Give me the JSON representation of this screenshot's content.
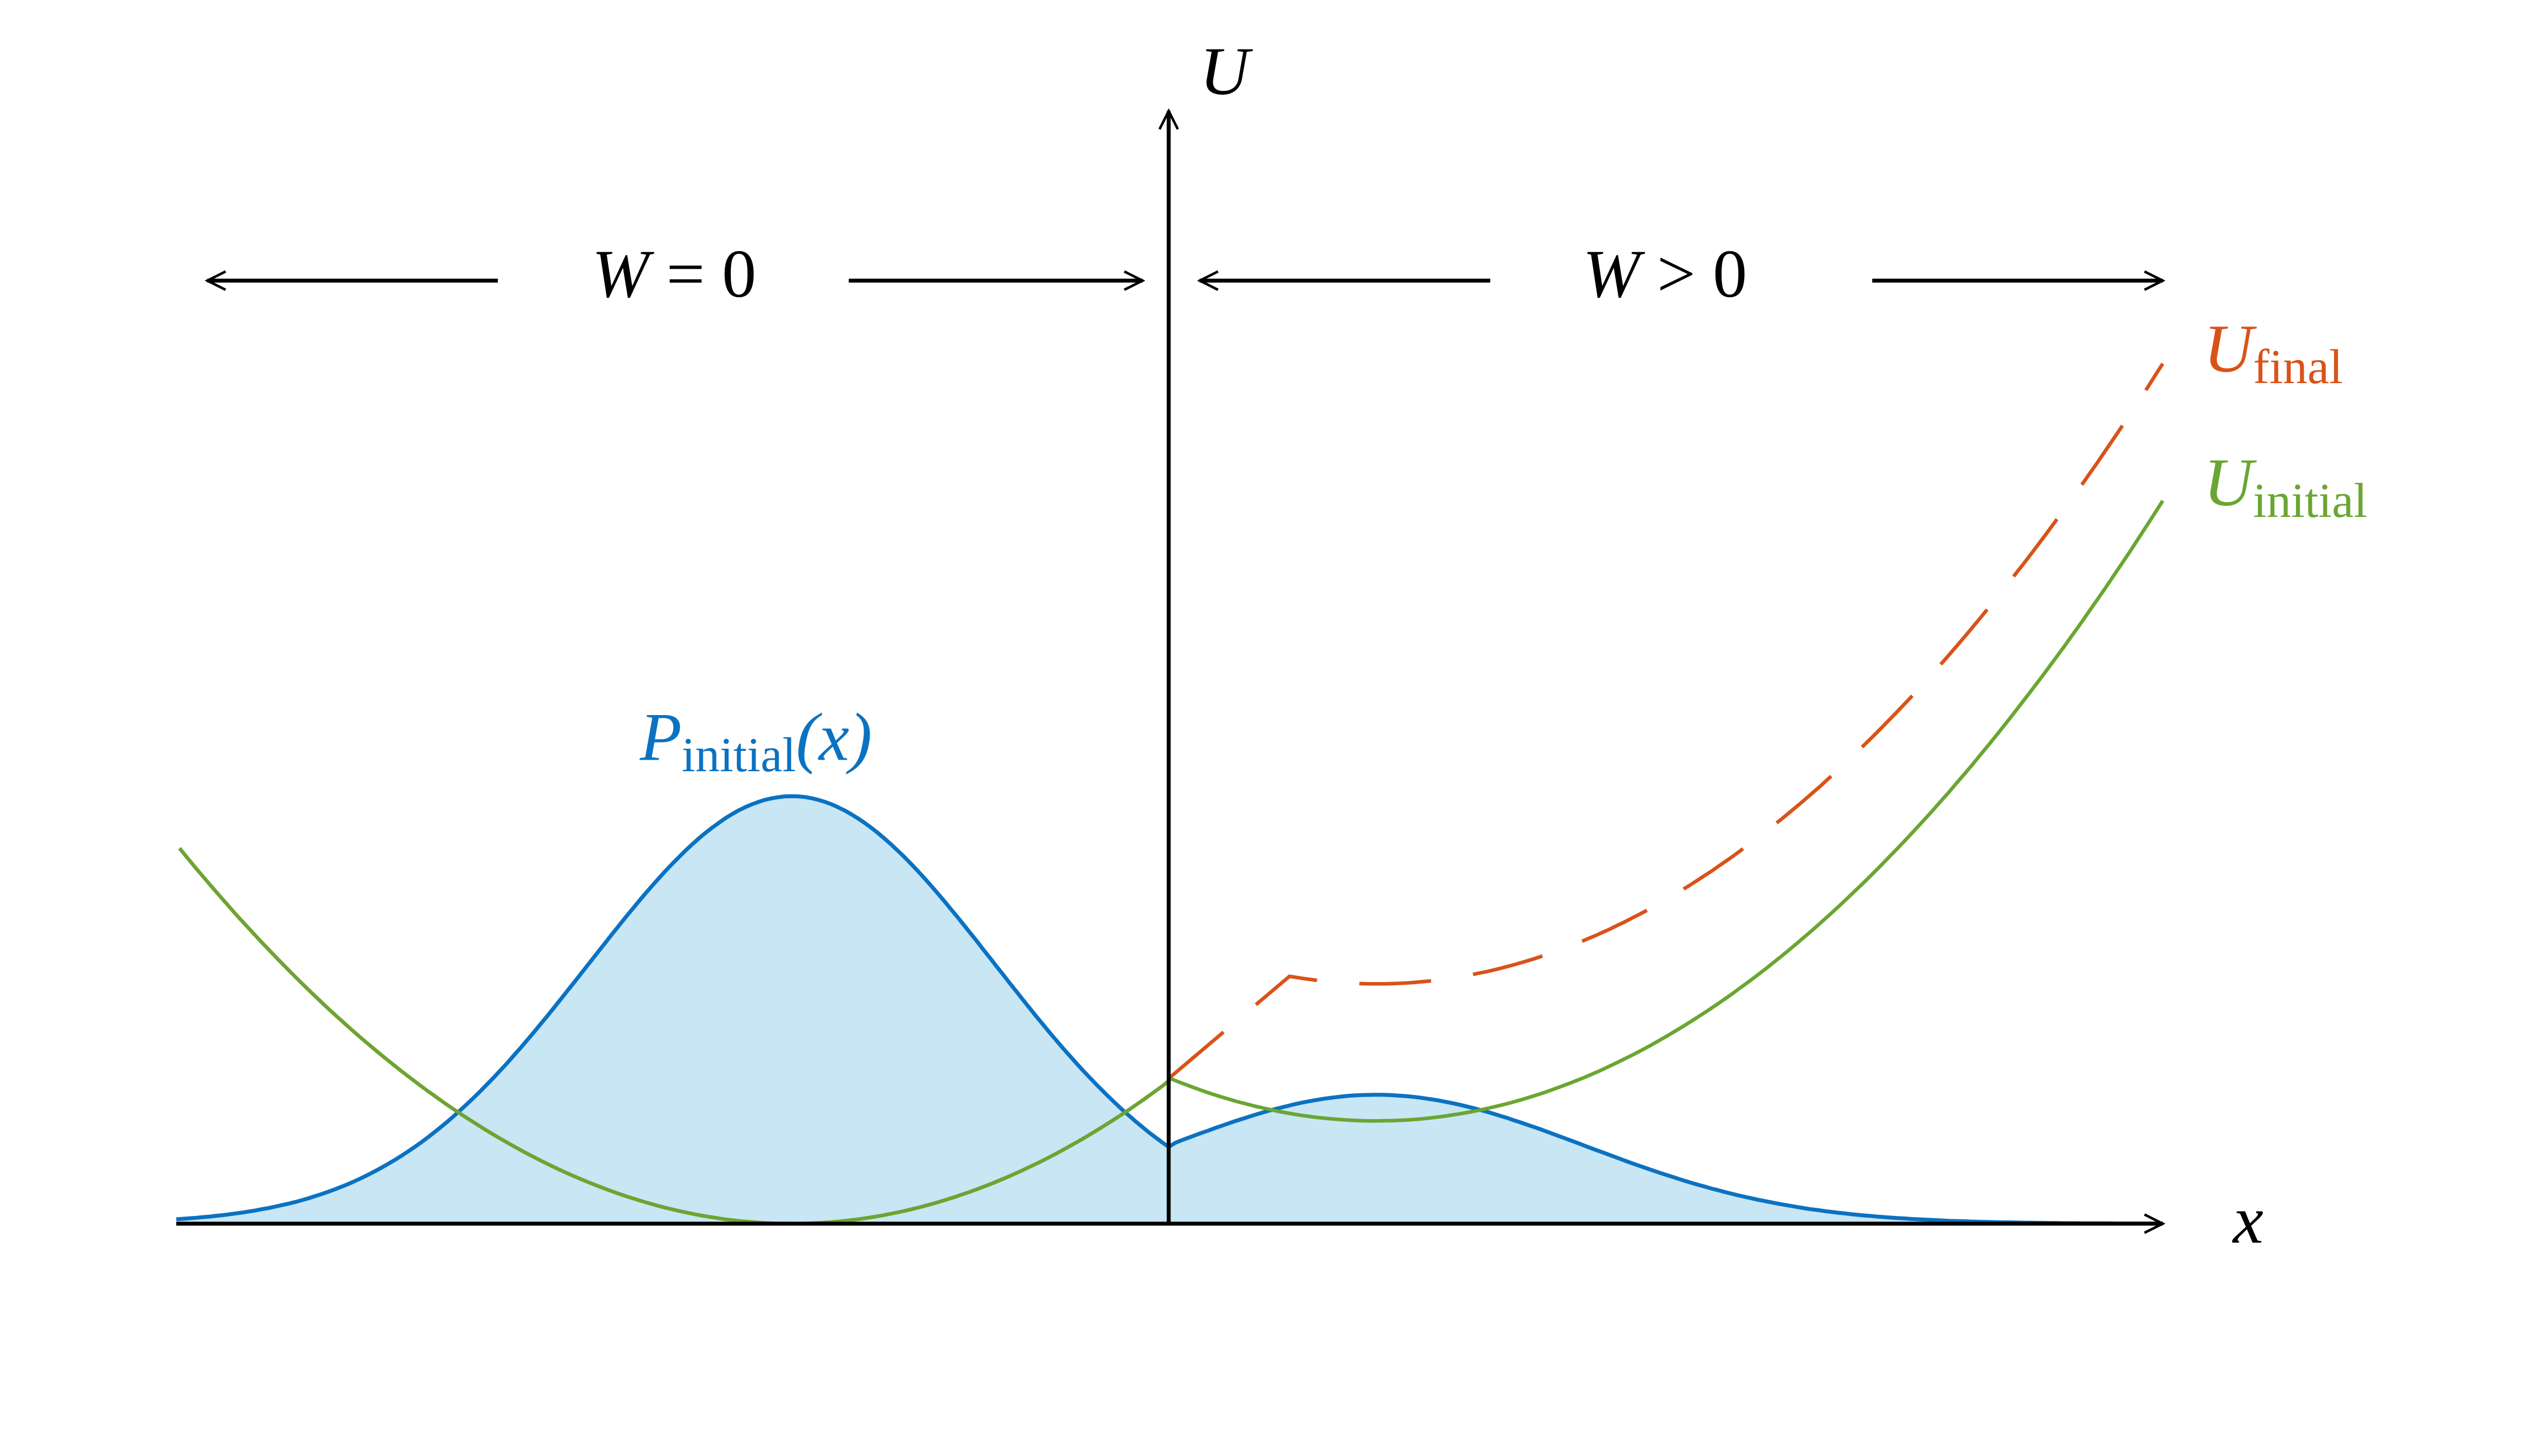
{
  "axes": {
    "y_label": "U",
    "x_label": "x"
  },
  "regions": {
    "left": {
      "symbol": "W",
      "condition": "= 0"
    },
    "right": {
      "symbol": "W",
      "condition": "> 0"
    }
  },
  "curves": {
    "u_final": {
      "symbol": "U",
      "subscript": "final"
    },
    "u_initial": {
      "symbol": "U",
      "subscript": "initial"
    },
    "p_initial": {
      "symbol": "P",
      "subscript": "initial",
      "argument": "(x)"
    }
  }
}
